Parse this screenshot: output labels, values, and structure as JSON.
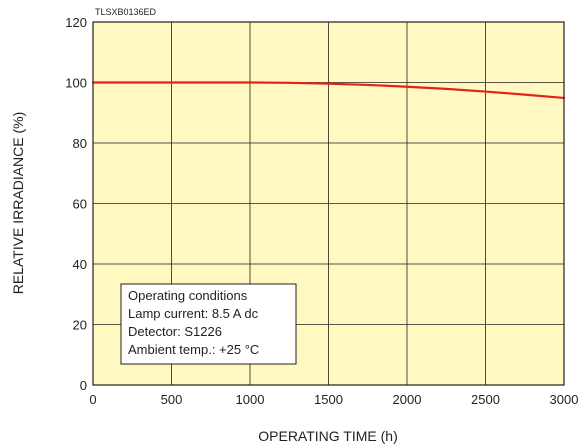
{
  "chart_data": {
    "type": "line",
    "code_label": "TLSXB0136ED",
    "xlabel": "OPERATING TIME (h)",
    "ylabel": "RELATIVE IRRADIANCE (%)",
    "xlim": [
      0,
      3000
    ],
    "ylim": [
      0,
      120
    ],
    "x_ticks": [
      0,
      500,
      1000,
      1500,
      2000,
      2500,
      3000
    ],
    "y_ticks": [
      0,
      20,
      40,
      60,
      80,
      100,
      120
    ],
    "grid": true,
    "plot_background": "#fff8c0",
    "series": [
      {
        "color": "#e32219",
        "x": [
          0,
          500,
          1000,
          1250,
          1500,
          1750,
          2000,
          2250,
          2500,
          2750,
          3000
        ],
        "y": [
          100,
          100,
          100,
          99.9,
          99.6,
          99.2,
          98.6,
          97.9,
          97.0,
          96.0,
          94.9
        ]
      }
    ],
    "annotation": {
      "lines": [
        "Operating conditions",
        "Lamp current: 8.5 A dc",
        "Detector: S1226",
        "Ambient temp.: +25 °C"
      ]
    }
  }
}
